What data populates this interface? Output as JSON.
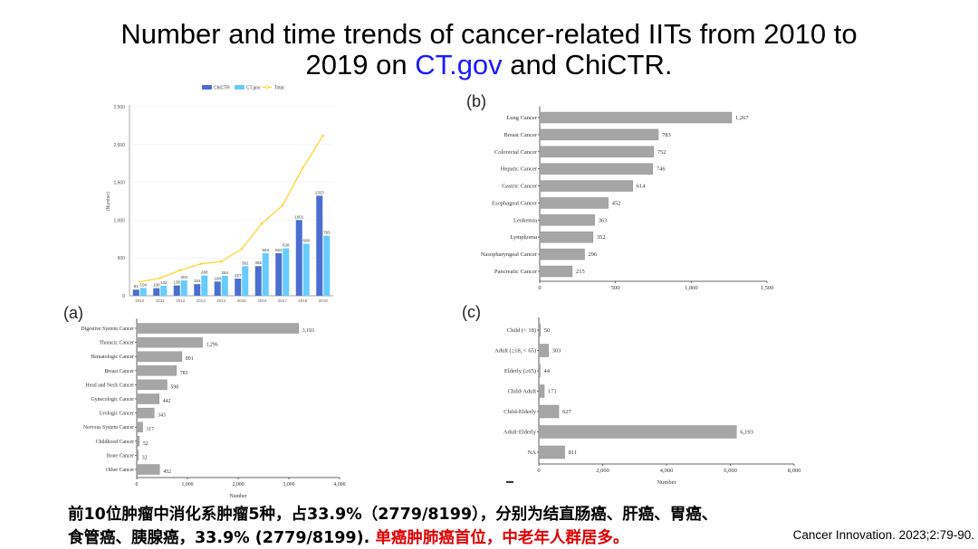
{
  "slide": {
    "title_line1": "Number and time trends of cancer-related IITs from 2010 to",
    "title_line2_pre": "2019 on ",
    "title_line2_link": "CT.gov",
    "title_line2_post": " and ChiCTR.",
    "bottom_line1": "前10位肿瘤中消化系肿瘤5种，占33.9%（2779/8199），分别为结直肠癌、肝癌、胃癌、",
    "bottom_line2_black": "食管癌、胰腺癌，33.9% (2779/8199). ",
    "bottom_line2_red": "单癌肿肺癌首位，中老年人群居多。",
    "citation": "Cancer Innovation. 2023;2:79-90.",
    "colors": {
      "link": "#1a1aff",
      "red": "#e00000",
      "chictr": "#4a6fd0",
      "ctgov": "#66ccff",
      "total": "#ffd21f",
      "bar": "#a6a6a6"
    }
  },
  "chart_data": [
    {
      "id": "trend",
      "type": "bar",
      "title": "",
      "categories": [
        "2010",
        "2011",
        "2012",
        "2013",
        "2014",
        "2015",
        "2016",
        "2017",
        "2018",
        "2019"
      ],
      "series": [
        {
          "name": "ChiCTR",
          "type": "bar",
          "values": [
            81,
            100,
            136,
            154,
            188,
            227,
            392,
            563,
            1001,
            1323
          ]
        },
        {
          "name": "CT.gov",
          "type": "bar",
          "values": [
            104,
            132,
            203,
            268,
            264,
            391,
            563,
            628,
            688,
            793
          ]
        },
        {
          "name": "Total",
          "type": "line",
          "values": [
            185,
            232,
            339,
            422,
            452,
            618,
            955,
            1191,
            1689,
            2116
          ]
        }
      ],
      "ylabel": "(Number)",
      "ylim": [
        0,
        2500
      ],
      "yticks": [
        "0",
        "500",
        "1,000",
        "1,500",
        "2,000",
        "2,500"
      ],
      "legend": "top"
    },
    {
      "id": "a",
      "panel_label": "(a)",
      "type": "bar",
      "orientation": "horizontal",
      "categories": [
        "Digestive System Cancer",
        "Thoracic Cancer",
        "Hematologic Cancer",
        "Breast Cancer",
        "Head and Neck Cancer",
        "Gynecologic Cancer",
        "Urologic Cancer",
        "Nervous System Cancer",
        "Childhood Cancer",
        "Bone Cancer",
        "Other Cancer"
      ],
      "values": [
        3193,
        1296,
        891,
        783,
        598,
        442,
        343,
        117,
        52,
        32,
        452
      ],
      "value_labels": [
        "3,193",
        "1,296",
        "891",
        "783",
        "598",
        "442",
        "343",
        "117",
        "52",
        "32",
        "452"
      ],
      "xlabel": "Number",
      "xlim": [
        0,
        4000
      ],
      "xticks": [
        "0",
        "1,000",
        "2,000",
        "3,000",
        "4,000"
      ]
    },
    {
      "id": "b",
      "panel_label": "(b)",
      "type": "bar",
      "orientation": "horizontal",
      "categories": [
        "Lung Cancer",
        "Breast Cancer",
        "Colorectal Cancer",
        "Hepatic Cancer",
        "Gastric Cancer",
        "Esophageal Cancer",
        "Leukemia",
        "Lymphoma",
        "Nasopharyngeal Cancer",
        "Pancreatic Cancer"
      ],
      "values": [
        1267,
        783,
        752,
        746,
        614,
        452,
        363,
        352,
        296,
        215
      ],
      "value_labels": [
        "1,267",
        "783",
        "752",
        "746",
        "614",
        "452",
        "363",
        "352",
        "296",
        "215"
      ],
      "xlabel": "",
      "xlim": [
        0,
        1500
      ],
      "xticks": [
        "0",
        "500",
        "1,000",
        "1,500"
      ]
    },
    {
      "id": "c",
      "panel_label": "(c)",
      "type": "bar",
      "orientation": "horizontal",
      "categories": [
        "Child (< 18)",
        "Adult (≥18, < 65)",
        "Elderly (≥65)",
        "Child-Adult",
        "Child-Elderly",
        "Adult-Elderly",
        "NA"
      ],
      "values": [
        50,
        303,
        44,
        171,
        627,
        6193,
        811
      ],
      "value_labels": [
        "50",
        "303",
        "44",
        "171",
        "627",
        "6,193",
        "811"
      ],
      "xlabel": "Number",
      "xlim": [
        0,
        8000
      ],
      "xticks": [
        "0",
        "2,000",
        "4,000",
        "6,000",
        "8,000"
      ]
    }
  ]
}
